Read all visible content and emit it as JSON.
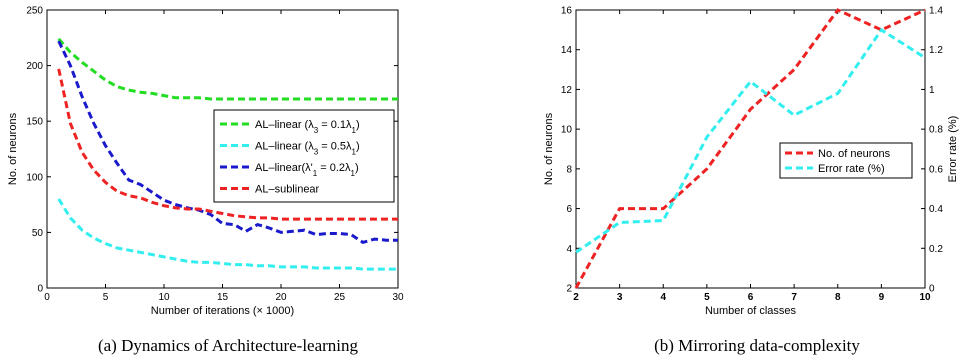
{
  "captions": {
    "a": "(a) Dynamics of Architecture-learning",
    "b": "(b) Mirroring data-complexity"
  },
  "chart_data": [
    {
      "type": "line",
      "xlabel": "Number of iterations (× 1000)",
      "ylabel": "No. of neurons",
      "xlim": [
        0,
        30
      ],
      "ylim": [
        0,
        250
      ],
      "xticks": [
        0,
        5,
        10,
        15,
        20,
        25,
        30
      ],
      "yticks": [
        0,
        50,
        100,
        150,
        200,
        250
      ],
      "legend_position": "center-right",
      "grid": false,
      "series": [
        {
          "name": "AL–linear (λ3 = 0.1λ1)",
          "name_parts": {
            "pre": "AL–linear (λ",
            "sub1": "3",
            "mid": " = 0.1λ",
            "sub2": "1",
            "post": ")"
          },
          "color": "#22dd22",
          "x": [
            1,
            2,
            3,
            4,
            5,
            6,
            7,
            8,
            9,
            10,
            11,
            12,
            13,
            14,
            15,
            16,
            17,
            18,
            19,
            20,
            21,
            22,
            23,
            24,
            25,
            26,
            27,
            28,
            29,
            30
          ],
          "values": [
            224,
            212,
            203,
            195,
            187,
            181,
            178,
            176,
            175,
            173,
            171,
            171,
            171,
            170,
            170,
            170,
            170,
            170,
            170,
            170,
            170,
            170,
            170,
            170,
            170,
            170,
            170,
            170,
            170,
            170
          ]
        },
        {
          "name": "AL–linear (λ3 = 0.5λ1)",
          "name_parts": {
            "pre": "AL–linear (λ",
            "sub1": "3",
            "mid": " = 0.5λ",
            "sub2": "1",
            "post": ")"
          },
          "color": "#33eeee",
          "x": [
            1,
            2,
            3,
            4,
            5,
            6,
            7,
            8,
            9,
            10,
            11,
            12,
            13,
            14,
            15,
            16,
            17,
            18,
            19,
            20,
            21,
            22,
            23,
            24,
            25,
            26,
            27,
            28,
            29,
            30
          ],
          "values": [
            80,
            63,
            52,
            45,
            40,
            36,
            34,
            32,
            30,
            28,
            26,
            24,
            23,
            23,
            22,
            21,
            21,
            20,
            20,
            19,
            19,
            19,
            18,
            18,
            18,
            18,
            17,
            17,
            17,
            17
          ]
        },
        {
          "name": "AL–linear(λ'1 = 0.2λ1)",
          "name_parts": {
            "pre": "AL–linear(λ'",
            "sub1": "1",
            "mid": " = 0.2λ",
            "sub2": "1",
            "post": ")"
          },
          "color": "#1a1acc",
          "x": [
            1,
            2,
            3,
            4,
            5,
            6,
            7,
            8,
            9,
            10,
            11,
            12,
            13,
            14,
            15,
            16,
            17,
            18,
            19,
            20,
            21,
            22,
            23,
            24,
            25,
            26,
            27,
            28,
            29,
            30
          ],
          "values": [
            222,
            200,
            172,
            148,
            128,
            112,
            97,
            93,
            86,
            79,
            75,
            72,
            70,
            66,
            58,
            57,
            51,
            57,
            54,
            50,
            51,
            52,
            48,
            49,
            49,
            48,
            41,
            44,
            43,
            43
          ]
        },
        {
          "name": "AL–sublinear",
          "name_parts": {
            "pre": "AL–sublinear",
            "sub1": "",
            "mid": "",
            "sub2": "",
            "post": ""
          },
          "color": "#ee2222",
          "x": [
            1,
            2,
            3,
            4,
            5,
            6,
            7,
            8,
            9,
            10,
            11,
            12,
            13,
            14,
            15,
            16,
            17,
            18,
            19,
            20,
            21,
            22,
            23,
            24,
            25,
            26,
            27,
            28,
            29,
            30
          ],
          "values": [
            197,
            148,
            122,
            106,
            95,
            87,
            83,
            81,
            77,
            74,
            72,
            71,
            71,
            69,
            67,
            65,
            64,
            63,
            63,
            62,
            62,
            62,
            62,
            62,
            62,
            62,
            62,
            62,
            62,
            62
          ]
        }
      ]
    },
    {
      "type": "line",
      "xlabel": "Number of classes",
      "ylabel": "No. of neurons",
      "ylabel_right": "Error rate (%)",
      "xlim": [
        2,
        10
      ],
      "ylim": [
        2,
        16
      ],
      "ylim_right": [
        0,
        1.4
      ],
      "xticks": [
        2,
        3,
        4,
        5,
        6,
        7,
        8,
        9,
        10
      ],
      "yticks": [
        2,
        4,
        6,
        8,
        10,
        12,
        14,
        16
      ],
      "yticks_right": [
        0,
        0.2,
        0.4,
        0.6,
        0.8,
        1,
        1.2,
        1.4
      ],
      "legend_position": "center-right",
      "grid": false,
      "series": [
        {
          "name": "No. of neurons",
          "axis": "left",
          "color": "#ee2222",
          "x": [
            2,
            3,
            4,
            5,
            6,
            7,
            8,
            9,
            10
          ],
          "values": [
            2,
            6,
            6,
            8,
            11,
            13,
            16,
            15,
            16
          ]
        },
        {
          "name": "Error rate (%)",
          "axis": "right",
          "color": "#33eeee",
          "x": [
            2,
            3,
            4,
            5,
            6,
            7,
            8,
            9,
            10
          ],
          "values": [
            0.18,
            0.33,
            0.34,
            0.76,
            1.04,
            0.87,
            0.98,
            1.3,
            1.16
          ]
        }
      ]
    }
  ]
}
